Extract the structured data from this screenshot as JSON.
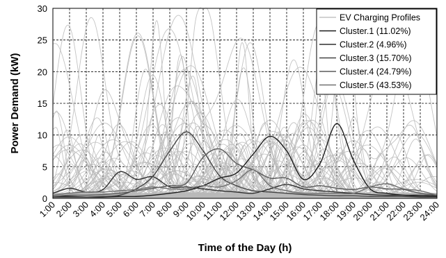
{
  "chart_data": {
    "type": "line",
    "title": "",
    "xlabel": "Time of the Day (h)",
    "ylabel": "Power Demand (kW)",
    "ylim": [
      0,
      30
    ],
    "yticks": [
      0,
      5,
      10,
      15,
      20,
      25,
      30
    ],
    "categories": [
      "1:00",
      "2:00",
      "3:00",
      "4:00",
      "5:00",
      "6:00",
      "7:00",
      "8:00",
      "9:00",
      "10:00",
      "11:00",
      "12:00",
      "13:00",
      "14:00",
      "15:00",
      "16:00",
      "17:00",
      "18:00",
      "19:00",
      "20:00",
      "21:00",
      "22:00",
      "23:00",
      "24:00"
    ],
    "grid": true,
    "legend_position": "top-right",
    "legend": {
      "title": "EV Charging Profiles",
      "entries": [
        "Cluster.1 (11.02%)",
        "Cluster.2 (4.96%)",
        "Cluster.3 (15.70%)",
        "Cluster.4 (24.79%)",
        "Cluster.5 (43.53%)"
      ]
    },
    "background_series_color": "#b8b8b8",
    "series": [
      {
        "name": "Cluster.1 (11.02%)",
        "color": "#1a1a1a",
        "x": [
          1,
          2,
          3,
          4,
          5,
          6,
          7,
          8,
          9,
          10,
          11,
          12,
          13,
          14,
          15,
          16,
          17,
          18,
          19,
          20,
          21,
          22,
          23,
          24
        ],
        "values": [
          0.3,
          0.3,
          0.2,
          0.2,
          0.3,
          0.3,
          0.5,
          0.8,
          1.2,
          2.0,
          3.2,
          4.0,
          7.0,
          9.8,
          7.5,
          3.0,
          5.5,
          11.8,
          6.0,
          1.5,
          0.8,
          0.5,
          0.3,
          0.3
        ]
      },
      {
        "name": "Cluster.2 (4.96%)",
        "color": "#2e2e2e",
        "x": [
          1,
          2,
          3,
          4,
          5,
          6,
          7,
          8,
          9,
          10,
          11,
          12,
          13,
          14,
          15,
          16,
          17,
          18,
          19,
          20,
          21,
          22,
          23,
          24
        ],
        "values": [
          0.8,
          1.6,
          1.0,
          1.4,
          4.2,
          3.0,
          3.4,
          1.8,
          1.8,
          1.5,
          1.2,
          1.0,
          0.8,
          1.5,
          2.2,
          1.5,
          1.2,
          1.0,
          0.8,
          0.6,
          0.5,
          0.5,
          0.5,
          0.4
        ]
      },
      {
        "name": "Cluster.3 (15.70%)",
        "color": "#444444",
        "x": [
          1,
          2,
          3,
          4,
          5,
          6,
          7,
          8,
          9,
          10,
          11,
          12,
          13,
          14,
          15,
          16,
          17,
          18,
          19,
          20,
          21,
          22,
          23,
          24
        ],
        "values": [
          0.2,
          0.2,
          0.2,
          0.3,
          0.5,
          1.5,
          3.5,
          7.5,
          10.5,
          7.5,
          3.5,
          2.0,
          1.2,
          1.0,
          0.8,
          0.6,
          0.5,
          0.4,
          0.4,
          0.3,
          0.3,
          0.3,
          0.2,
          0.2
        ]
      },
      {
        "name": "Cluster.4 (24.79%)",
        "color": "#5a5a5a",
        "x": [
          1,
          2,
          3,
          4,
          5,
          6,
          7,
          8,
          9,
          10,
          11,
          12,
          13,
          14,
          15,
          16,
          17,
          18,
          19,
          20,
          21,
          22,
          23,
          24
        ],
        "values": [
          0.3,
          0.5,
          0.5,
          0.6,
          0.8,
          1.2,
          1.6,
          2.0,
          2.4,
          6.5,
          7.8,
          5.5,
          4.5,
          3.2,
          3.2,
          1.8,
          2.0,
          1.6,
          1.4,
          1.8,
          1.5,
          1.4,
          0.8,
          0.5
        ]
      },
      {
        "name": "Cluster.5 (43.53%)",
        "color": "#707070",
        "x": [
          1,
          2,
          3,
          4,
          5,
          6,
          7,
          8,
          9,
          10,
          11,
          12,
          13,
          14,
          15,
          16,
          17,
          18,
          19,
          20,
          21,
          22,
          23,
          24
        ],
        "values": [
          0.5,
          0.8,
          1.0,
          1.0,
          1.2,
          1.4,
          1.8,
          1.5,
          1.5,
          2.0,
          1.8,
          2.8,
          4.5,
          2.0,
          1.2,
          0.8,
          0.8,
          0.8,
          0.8,
          1.8,
          2.3,
          1.5,
          1.2,
          0.5
        ]
      }
    ]
  }
}
